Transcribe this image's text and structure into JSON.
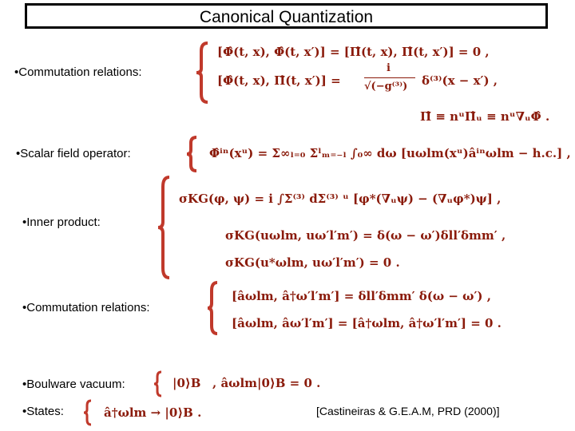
{
  "title": "Canonical Quantization",
  "sections": {
    "commutation1": {
      "label": "•Commutation relations:",
      "eq1": "[Φ̂(t, x), Φ̂(t, x′)]   =   [Π̂(t, x), Π̂(t, x′)] = 0 ,",
      "eq2_lhs": "[Φ̂(t, x), Π̂(t, x′)]   =",
      "eq2_frac_num": "i",
      "eq2_frac_den": "√(−g⁽³⁾)",
      "eq2_rhs": "δ⁽³⁾(x − x′) ,",
      "eq3": "Π̂ ≡ nᵘΠ̂ᵤ ≡ nᵘ∇ᵤΦ̂ ."
    },
    "scalar_field": {
      "label": "•Scalar field operator:",
      "eq": "Φ̂ⁱⁿ(xᵘ) = Σ∞ₗ₌₀ Σˡₘ₌₋ₗ ∫₀∞ dω [uωlm(xᵘ)âⁱⁿωlm − h.c.] ,"
    },
    "inner_product": {
      "label": "•Inner product:",
      "eq1": "σKG(φ, ψ) = i ∫Σ⁽³⁾ dΣ⁽³⁾ ᵘ [φ*(∇ᵤψ) − (∇ᵤφ*)ψ] ,",
      "eq2": "σKG(uωlm, uω′l′m′) = δ(ω − ω′)δll′δmm′ ,",
      "eq3": "σKG(u*ωlm, uω′l′m′) = 0 ."
    },
    "commutation2": {
      "label": "•Commutation relations:",
      "eq1": "[âωlm, â†ω′l′m′] = δll′δmm′ δ(ω − ω′) ,",
      "eq2": "[âωlm, âω′l′m′] = [â†ωlm, â†ω′l′m′] = 0 ."
    },
    "boulware": {
      "label": "•Boulware vacuum:",
      "eq1": "|0⟩B",
      "eq2": ",    âωlm|0⟩B = 0 ."
    },
    "states": {
      "label": "•States:",
      "eq": "â†ωlm → |0⟩B ."
    }
  },
  "citation": "[Castineiras & G.E.A.M, PRD (2000)]",
  "colors": {
    "math": "#8a1a0a",
    "brace": "#c0392b"
  }
}
